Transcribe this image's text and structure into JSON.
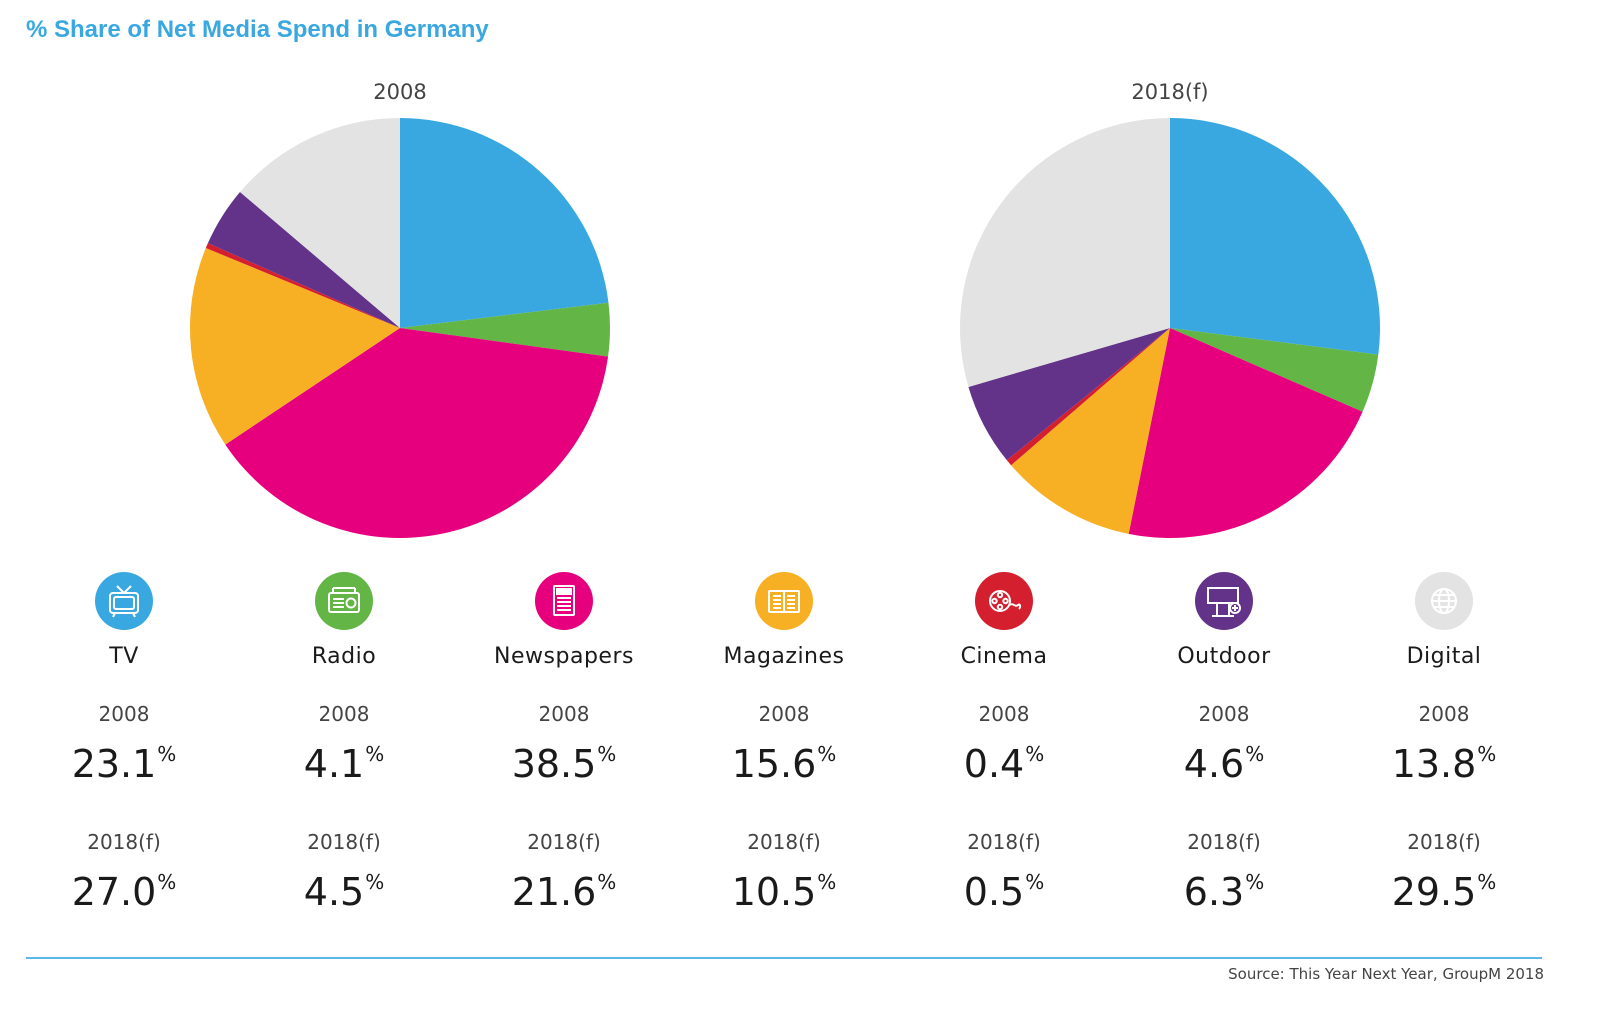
{
  "title": "% Share of Net Media Spend in Germany",
  "source": "Source: This Year Next Year, GroupM 2018",
  "colors": {
    "tv": "#3aa8e0",
    "radio": "#63b546",
    "newspapers": "#e6007e",
    "magazines": "#f7b024",
    "cinema": "#d41f2f",
    "outdoor": "#63338a",
    "digital": "#e3e3e3",
    "accent": "#3aa8e0"
  },
  "chart_data": [
    {
      "type": "pie",
      "title": "2008",
      "categories": [
        "TV",
        "Radio",
        "Newspapers",
        "Magazines",
        "Cinema",
        "Outdoor",
        "Digital"
      ],
      "values": [
        23.1,
        4.1,
        38.5,
        15.6,
        0.4,
        4.6,
        13.8
      ],
      "unit": "%"
    },
    {
      "type": "pie",
      "title": "2018(f)",
      "categories": [
        "TV",
        "Radio",
        "Newspapers",
        "Magazines",
        "Cinema",
        "Outdoor",
        "Digital"
      ],
      "values": [
        27.0,
        4.5,
        21.6,
        10.5,
        0.5,
        6.3,
        29.5
      ],
      "unit": "%"
    }
  ],
  "legend": {
    "year1_label": "2008",
    "year2_label": "2018(f)",
    "pct": "%",
    "items": [
      {
        "name": "TV",
        "icon": "tv-icon",
        "v2008": "23.1",
        "v2018": "27.0"
      },
      {
        "name": "Radio",
        "icon": "radio-icon",
        "v2008": "4.1",
        "v2018": "4.5"
      },
      {
        "name": "Newspapers",
        "icon": "newspaper-icon",
        "v2008": "38.5",
        "v2018": "21.6"
      },
      {
        "name": "Magazines",
        "icon": "magazine-icon",
        "v2008": "15.6",
        "v2018": "10.5"
      },
      {
        "name": "Cinema",
        "icon": "film-reel-icon",
        "v2008": "0.4",
        "v2018": "0.5"
      },
      {
        "name": "Outdoor",
        "icon": "billboard-icon",
        "v2008": "4.6",
        "v2018": "6.3"
      },
      {
        "name": "Digital",
        "icon": "globe-icon",
        "v2008": "13.8",
        "v2018": "29.5"
      }
    ]
  }
}
